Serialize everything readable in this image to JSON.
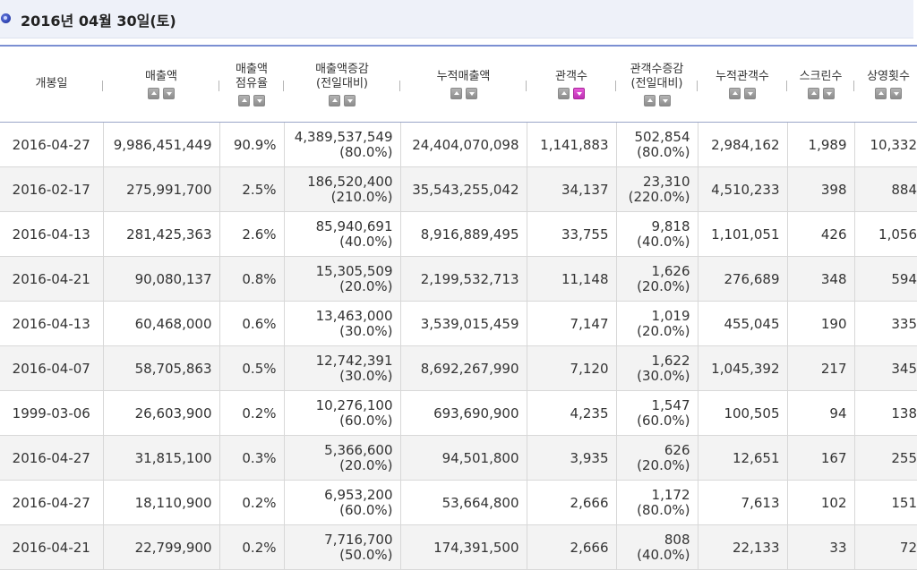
{
  "header": {
    "title": "2016년 04월 30일(토)"
  },
  "columns": [
    {
      "label1": "개봉일",
      "label2": "",
      "sortable": false
    },
    {
      "label1": "매출액",
      "label2": "",
      "sortable": true,
      "active": ""
    },
    {
      "label1": "매출액",
      "label2": "점유율",
      "sortable": true,
      "active": ""
    },
    {
      "label1": "매출액증감",
      "label2": "(전일대비)",
      "sortable": true,
      "active": ""
    },
    {
      "label1": "누적매출액",
      "label2": "",
      "sortable": true,
      "active": ""
    },
    {
      "label1": "관객수",
      "label2": "",
      "sortable": true,
      "active": "down"
    },
    {
      "label1": "관객수증감",
      "label2": "(전일대비)",
      "sortable": true,
      "active": ""
    },
    {
      "label1": "누적관객수",
      "label2": "",
      "sortable": true,
      "active": ""
    },
    {
      "label1": "스크린수",
      "label2": "",
      "sortable": true,
      "active": ""
    },
    {
      "label1": "상영횟수",
      "label2": "",
      "sortable": true,
      "active": ""
    }
  ],
  "rows": [
    {
      "open_date": "2016-04-27",
      "sales": "9,986,451,449",
      "share": "90.9%",
      "sales_change": "4,389,537,549",
      "sales_change_pct": "(80.0%)",
      "cum_sales": "24,404,070,098",
      "audience": "1,141,883",
      "aud_change": "502,854",
      "aud_change_pct": "(80.0%)",
      "cum_audience": "2,984,162",
      "screens": "1,989",
      "shows": "10,332"
    },
    {
      "open_date": "2016-02-17",
      "sales": "275,991,700",
      "share": "2.5%",
      "sales_change": "186,520,400",
      "sales_change_pct": "(210.0%)",
      "cum_sales": "35,543,255,042",
      "audience": "34,137",
      "aud_change": "23,310",
      "aud_change_pct": "(220.0%)",
      "cum_audience": "4,510,233",
      "screens": "398",
      "shows": "884"
    },
    {
      "open_date": "2016-04-13",
      "sales": "281,425,363",
      "share": "2.6%",
      "sales_change": "85,940,691",
      "sales_change_pct": "(40.0%)",
      "cum_sales": "8,916,889,495",
      "audience": "33,755",
      "aud_change": "9,818",
      "aud_change_pct": "(40.0%)",
      "cum_audience": "1,101,051",
      "screens": "426",
      "shows": "1,056"
    },
    {
      "open_date": "2016-04-21",
      "sales": "90,080,137",
      "share": "0.8%",
      "sales_change": "15,305,509",
      "sales_change_pct": "(20.0%)",
      "cum_sales": "2,199,532,713",
      "audience": "11,148",
      "aud_change": "1,626",
      "aud_change_pct": "(20.0%)",
      "cum_audience": "276,689",
      "screens": "348",
      "shows": "594"
    },
    {
      "open_date": "2016-04-13",
      "sales": "60,468,000",
      "share": "0.6%",
      "sales_change": "13,463,000",
      "sales_change_pct": "(30.0%)",
      "cum_sales": "3,539,015,459",
      "audience": "7,147",
      "aud_change": "1,019",
      "aud_change_pct": "(20.0%)",
      "cum_audience": "455,045",
      "screens": "190",
      "shows": "335"
    },
    {
      "open_date": "2016-04-07",
      "sales": "58,705,863",
      "share": "0.5%",
      "sales_change": "12,742,391",
      "sales_change_pct": "(30.0%)",
      "cum_sales": "8,692,267,990",
      "audience": "7,120",
      "aud_change": "1,622",
      "aud_change_pct": "(30.0%)",
      "cum_audience": "1,045,392",
      "screens": "217",
      "shows": "345"
    },
    {
      "open_date": "1999-03-06",
      "sales": "26,603,900",
      "share": "0.2%",
      "sales_change": "10,276,100",
      "sales_change_pct": "(60.0%)",
      "cum_sales": "693,690,900",
      "audience": "4,235",
      "aud_change": "1,547",
      "aud_change_pct": "(60.0%)",
      "cum_audience": "100,505",
      "screens": "94",
      "shows": "138"
    },
    {
      "open_date": "2016-04-27",
      "sales": "31,815,100",
      "share": "0.3%",
      "sales_change": "5,366,600",
      "sales_change_pct": "(20.0%)",
      "cum_sales": "94,501,800",
      "audience": "3,935",
      "aud_change": "626",
      "aud_change_pct": "(20.0%)",
      "cum_audience": "12,651",
      "screens": "167",
      "shows": "255"
    },
    {
      "open_date": "2016-04-27",
      "sales": "18,110,900",
      "share": "0.2%",
      "sales_change": "6,953,200",
      "sales_change_pct": "(60.0%)",
      "cum_sales": "53,664,800",
      "audience": "2,666",
      "aud_change": "1,172",
      "aud_change_pct": "(80.0%)",
      "cum_audience": "7,613",
      "screens": "102",
      "shows": "151"
    },
    {
      "open_date": "2016-04-21",
      "sales": "22,799,900",
      "share": "0.2%",
      "sales_change": "7,716,700",
      "sales_change_pct": "(50.0%)",
      "cum_sales": "174,391,500",
      "audience": "2,666",
      "aud_change": "808",
      "aud_change_pct": "(40.0%)",
      "cum_audience": "22,133",
      "screens": "33",
      "shows": "72"
    }
  ]
}
